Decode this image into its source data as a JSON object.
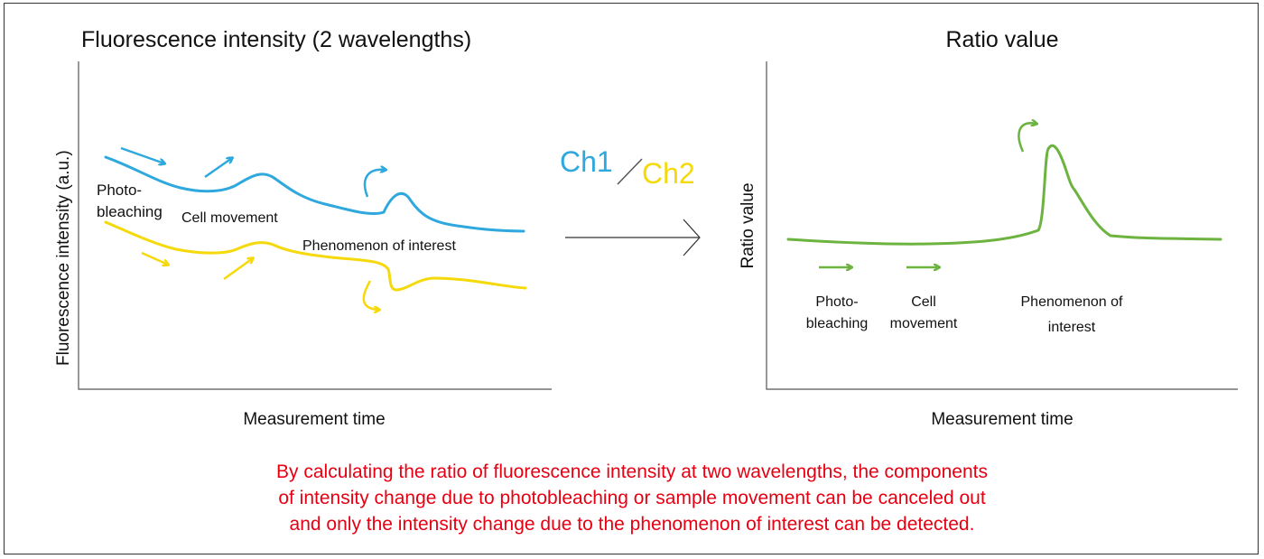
{
  "left_panel": {
    "title": "Fluorescence intensity (2 wavelengths)",
    "ylabel": "Fluorescence intensity  (a.u.)",
    "xlabel": "Measurement time",
    "labels": {
      "photobleaching_1": "Photo-",
      "photobleaching_2": "bleaching",
      "cell_movement": "Cell movement",
      "phenomenon": "Phenomenon of interest"
    },
    "ch1_color": "#2ea8dd",
    "ch2_color": "#f5d90a"
  },
  "middle": {
    "numerator": "Ch1",
    "denominator": "Ch2",
    "numerator_color": "#2ea8dd",
    "denominator_color": "#f5d90a"
  },
  "right_panel": {
    "title": "Ratio value",
    "ylabel": "Ratio value",
    "xlabel": "Measurement time",
    "ratio_color": "#6cb33f",
    "labels": {
      "photobleaching_1": "Photo-",
      "photobleaching_2": "bleaching",
      "cell_movement_1": "Cell",
      "cell_movement_2": "movement",
      "phenomenon_1": "Phenomenon of",
      "phenomenon_2": "interest"
    }
  },
  "caption": {
    "line1": "By calculating the ratio of fluorescence intensity at two wavelengths, the components",
    "line2": "of intensity change due to photobleaching or sample movement can be canceled out",
    "line3": "and only the intensity change due to the phenomenon of interest can be detected.",
    "color": "#e60012"
  }
}
